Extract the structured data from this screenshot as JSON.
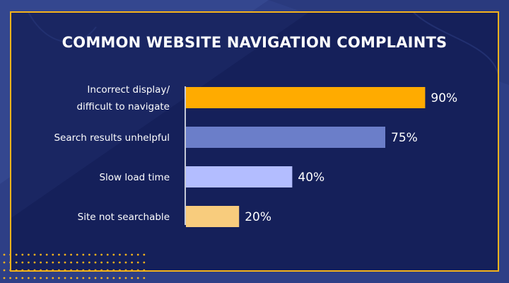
{
  "chart_data": {
    "type": "bar",
    "orientation": "horizontal",
    "title": "COMMON WEBSITE NAVIGATION COMPLAINTS",
    "categories": [
      [
        "Incorrect display/",
        "difficult to navigate"
      ],
      [
        "Search results unhelpful"
      ],
      [
        "Slow load time"
      ],
      [
        "Site not searchable"
      ]
    ],
    "values": [
      90,
      75,
      40,
      20
    ],
    "value_labels": [
      "90%",
      "75%",
      "40%",
      "20%"
    ],
    "bar_colors": [
      "#ffab00",
      "#6b7ec9",
      "#b3bdff",
      "#f8cc7d"
    ],
    "xlim": [
      0,
      100
    ],
    "grid": false,
    "legend": "none"
  },
  "colors": {
    "background": "#2e3f86",
    "panel": "#15205a",
    "panel_border": "#f5b21b",
    "text": "#ffffff",
    "dots": "#f5b21b"
  }
}
